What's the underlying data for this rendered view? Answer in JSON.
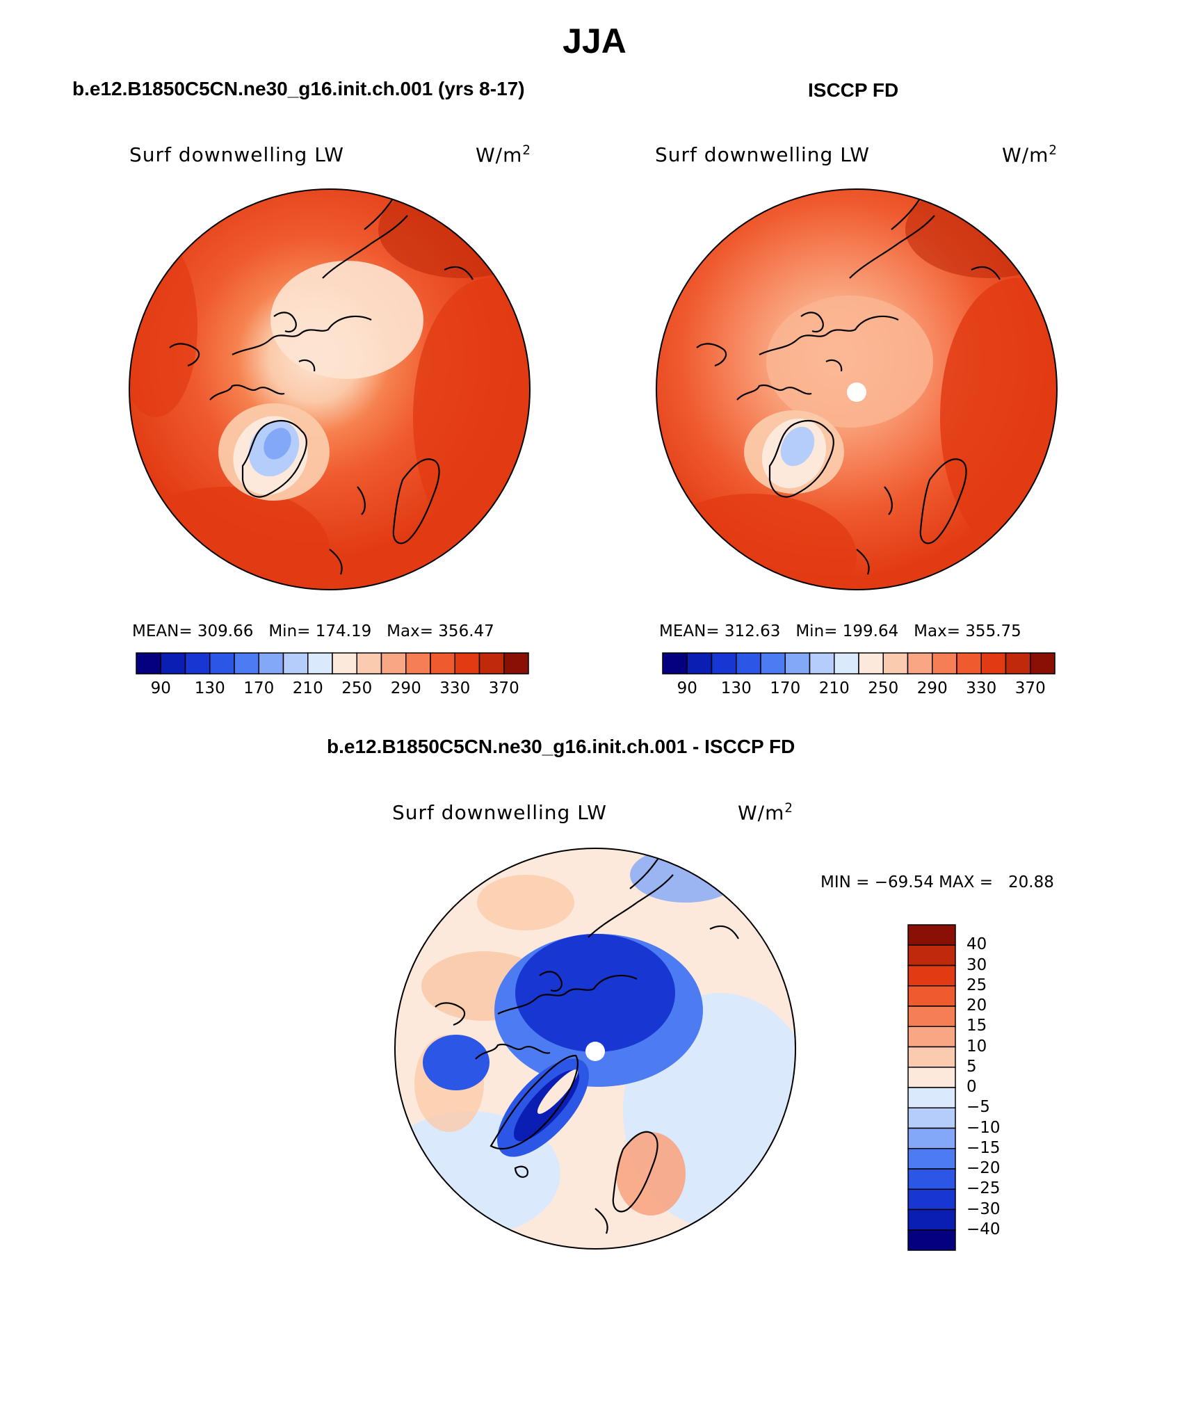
{
  "title": "JJA",
  "panels": [
    {
      "case_title": "b.e12.B1850C5CN.ne30_g16.init.ch.001 (yrs 8-17)",
      "variable": "Surf downwelling LW",
      "units_base": "W/m",
      "units_exp": "2",
      "mean_label": "MEAN=",
      "mean": "309.66",
      "min_label": "Min=",
      "min": "174.19",
      "max_label": "Max=",
      "max": "356.47"
    },
    {
      "case_title": "ISCCP FD",
      "variable": "Surf downwelling LW",
      "units_base": "W/m",
      "units_exp": "2",
      "mean_label": "MEAN=",
      "mean": "312.63",
      "min_label": "Min=",
      "min": "199.64",
      "max_label": "Max=",
      "max": "355.75"
    }
  ],
  "abs_colorbar": {
    "colors": [
      "#04007f",
      "#0a1eb4",
      "#1736d2",
      "#2b56e6",
      "#4d7cf2",
      "#82a8f7",
      "#b4cdfb",
      "#dbe9fc",
      "#fde9dc",
      "#fbcbb0",
      "#f8a683",
      "#f67e55",
      "#ef5a2f",
      "#e23b13",
      "#c02a0a",
      "#8a0f05"
    ],
    "labels": [
      "90",
      "130",
      "170",
      "210",
      "250",
      "290",
      "330",
      "370"
    ]
  },
  "diff_panel": {
    "title": "b.e12.B1850C5CN.ne30_g16.init.ch.001 - ISCCP FD",
    "variable": "Surf downwelling LW",
    "units_base": "W/m",
    "units_exp": "2",
    "minmax": "MIN = −69.54 MAX =   20.88"
  },
  "diff_colorbar": {
    "colors": [
      "#8a0f05",
      "#c02a0a",
      "#e23b13",
      "#ef5a2f",
      "#f67e55",
      "#f8a683",
      "#fbcbb0",
      "#fde9dc",
      "#dbe9fc",
      "#b4cdfb",
      "#82a8f7",
      "#4d7cf2",
      "#2b56e6",
      "#1736d2",
      "#0a1eb4",
      "#04007f"
    ],
    "labels": [
      "40",
      "30",
      "25",
      "20",
      "15",
      "10",
      "5",
      "0",
      "−5",
      "−10",
      "−15",
      "−20",
      "−25",
      "−30",
      "−40"
    ]
  }
}
